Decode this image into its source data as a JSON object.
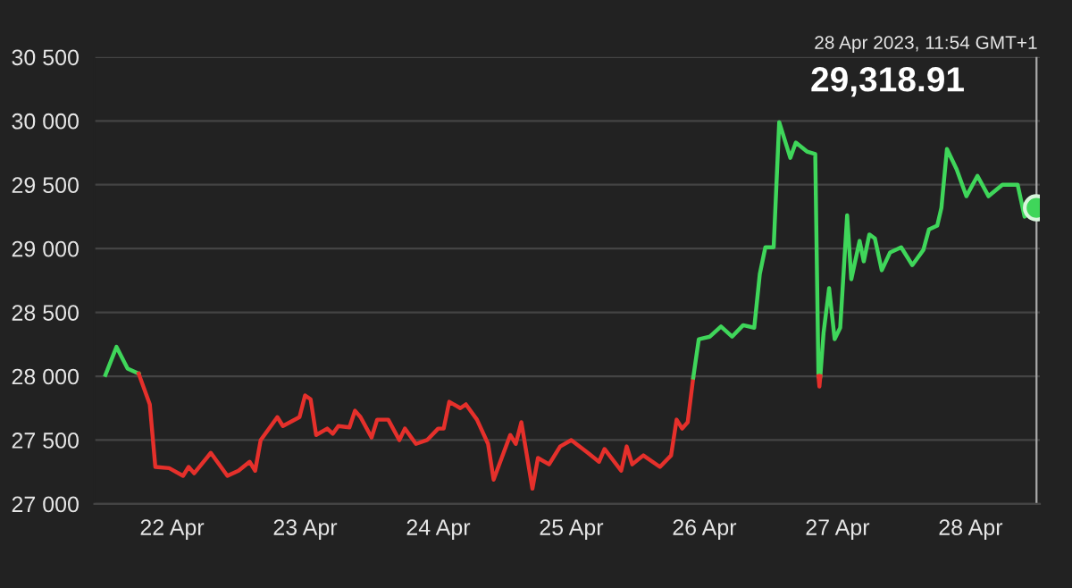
{
  "chart_data": {
    "type": "line",
    "annotations": [
      "28 Apr 2023, 11:54 GMT+1",
      "29,318.91"
    ],
    "series": [
      {
        "color": "#3fd65a",
        "x": [
          "2023-04-21T12:00",
          "2023-04-21T14:00",
          "2023-04-21T16:00",
          "2023-04-21T18:00"
        ],
        "values": [
          28010,
          28230,
          28060,
          28020
        ]
      },
      {
        "color": "#e5302b",
        "x": [
          "2023-04-21T18:00",
          "2023-04-21T20:00",
          "2023-04-21T21:00",
          "2023-04-21T23:30",
          "2023-04-22T02:00",
          "2023-04-22T03:00",
          "2023-04-22T04:00",
          "2023-04-22T07:00",
          "2023-04-22T10:00",
          "2023-04-22T12:00",
          "2023-04-22T14:00",
          "2023-04-22T15:00",
          "2023-04-22T16:00",
          "2023-04-22T19:00",
          "2023-04-22T20:00",
          "2023-04-22T23:00",
          "2023-04-23T00:00",
          "2023-04-23T01:00",
          "2023-04-23T02:00",
          "2023-04-23T04:00",
          "2023-04-23T05:00",
          "2023-04-23T06:00",
          "2023-04-23T08:00",
          "2023-04-23T09:00",
          "2023-04-23T10:00",
          "2023-04-23T12:00",
          "2023-04-23T13:00",
          "2023-04-23T15:00",
          "2023-04-23T17:00",
          "2023-04-23T18:00",
          "2023-04-23T20:00",
          "2023-04-23T22:00",
          "2023-04-24T00:00",
          "2023-04-24T01:00",
          "2023-04-24T02:00",
          "2023-04-24T04:00",
          "2023-04-24T05:00",
          "2023-04-24T07:00",
          "2023-04-24T09:00",
          "2023-04-24T10:00",
          "2023-04-24T13:00",
          "2023-04-24T14:00",
          "2023-04-24T15:00",
          "2023-04-24T17:00",
          "2023-04-24T18:00",
          "2023-04-24T20:00",
          "2023-04-24T22:00",
          "2023-04-25T00:00",
          "2023-04-25T03:00",
          "2023-04-25T05:00",
          "2023-04-25T06:00",
          "2023-04-25T09:00",
          "2023-04-25T10:00",
          "2023-04-25T11:00",
          "2023-04-25T13:00",
          "2023-04-25T16:00",
          "2023-04-25T18:00",
          "2023-04-25T19:00",
          "2023-04-25T20:00",
          "2023-04-25T21:00",
          "2023-04-25T22:00"
        ],
        "values": [
          28020,
          27780,
          27290,
          27280,
          27220,
          27290,
          27240,
          27400,
          27220,
          27260,
          27330,
          27260,
          27500,
          27680,
          27610,
          27680,
          27850,
          27820,
          27540,
          27590,
          27550,
          27610,
          27600,
          27730,
          27680,
          27520,
          27660,
          27660,
          27500,
          27590,
          27470,
          27500,
          27590,
          27590,
          27800,
          27750,
          27780,
          27660,
          27470,
          27190,
          27540,
          27470,
          27640,
          27120,
          27360,
          27310,
          27450,
          27500,
          27400,
          27330,
          27430,
          27260,
          27450,
          27310,
          27380,
          27290,
          27380,
          27660,
          27590,
          27640,
          27990
        ]
      },
      {
        "color": "#3fd65a",
        "x": [
          "2023-04-25T22:00",
          "2023-04-25T23:00",
          "2023-04-26T01:00",
          "2023-04-26T03:00",
          "2023-04-26T05:00",
          "2023-04-26T07:00",
          "2023-04-26T09:00",
          "2023-04-26T10:00",
          "2023-04-26T11:00",
          "2023-04-26T12:30",
          "2023-04-26T13:30",
          "2023-04-26T15:30",
          "2023-04-26T16:30",
          "2023-04-26T18:30",
          "2023-04-26T20:00",
          "2023-04-26T20:35",
          "2023-04-26T20:45",
          "2023-04-26T20:55",
          "2023-04-26T21:30",
          "2023-04-26T22:30",
          "2023-04-26T23:30",
          "2023-04-27T00:30",
          "2023-04-27T01:45",
          "2023-04-27T02:30",
          "2023-04-27T04:00",
          "2023-04-27T04:45",
          "2023-04-27T05:45",
          "2023-04-27T06:45",
          "2023-04-27T08:00",
          "2023-04-27T09:30",
          "2023-04-27T11:30",
          "2023-04-27T13:30",
          "2023-04-27T15:30",
          "2023-04-27T16:30",
          "2023-04-27T18:00",
          "2023-04-27T18:45",
          "2023-04-27T19:45",
          "2023-04-27T21:30",
          "2023-04-27T23:15",
          "2023-04-28T01:15",
          "2023-04-28T03:15",
          "2023-04-28T05:45",
          "2023-04-28T08:30",
          "2023-04-28T09:45",
          "2023-04-28T11:54"
        ],
        "values": [
          27990,
          28290,
          28310,
          28390,
          28310,
          28400,
          28380,
          28800,
          29010,
          29010,
          29990,
          29710,
          29830,
          29760,
          29740,
          28000,
          null,
          28000,
          28340,
          28690,
          28290,
          28380,
          29260,
          28760,
          29060,
          28900,
          29110,
          29080,
          28830,
          28970,
          29010,
          28870,
          28990,
          29150,
          29180,
          29320,
          29780,
          29620,
          29410,
          29570,
          29410,
          29500,
          29500,
          29250,
          29318.91
        ]
      },
      {
        "color": "#e5302b",
        "x": [
          "2023-04-26T20:35",
          "2023-04-26T20:45",
          "2023-04-26T20:55"
        ],
        "values": [
          28000,
          27920,
          28000
        ]
      },
      {
        "type": "scatter",
        "color": "#3fd65a",
        "x": [
          "2023-04-28T11:54"
        ],
        "values": [
          29318.91
        ]
      }
    ],
    "ref_lines": [
      {
        "axis": "x",
        "value": "2023-04-28T11:54",
        "color": "#aaaaaa"
      }
    ],
    "xlim": [
      "2023-04-21T10:00",
      "2023-04-28T12:30"
    ],
    "xticks": [
      {
        "value": "2023-04-22",
        "label": "22 Apr"
      },
      {
        "value": "2023-04-23",
        "label": "23 Apr"
      },
      {
        "value": "2023-04-24",
        "label": "24 Apr"
      },
      {
        "value": "2023-04-25",
        "label": "25 Apr"
      },
      {
        "value": "2023-04-26",
        "label": "26 Apr"
      },
      {
        "value": "2023-04-27",
        "label": "27 Apr"
      },
      {
        "value": "2023-04-28",
        "label": "28 Apr"
      }
    ],
    "ylim": [
      27000,
      30500
    ],
    "yticks": [
      {
        "value": 27000,
        "label": "27 000"
      },
      {
        "value": 27500,
        "label": "27 500"
      },
      {
        "value": 28000,
        "label": "28 000"
      },
      {
        "value": 28500,
        "label": "28 500"
      },
      {
        "value": 29000,
        "label": "29 000"
      },
      {
        "value": 29500,
        "label": "29 500"
      },
      {
        "value": 30000,
        "label": "30 000"
      },
      {
        "value": 30500,
        "label": "30 500"
      }
    ],
    "grid": "y"
  }
}
